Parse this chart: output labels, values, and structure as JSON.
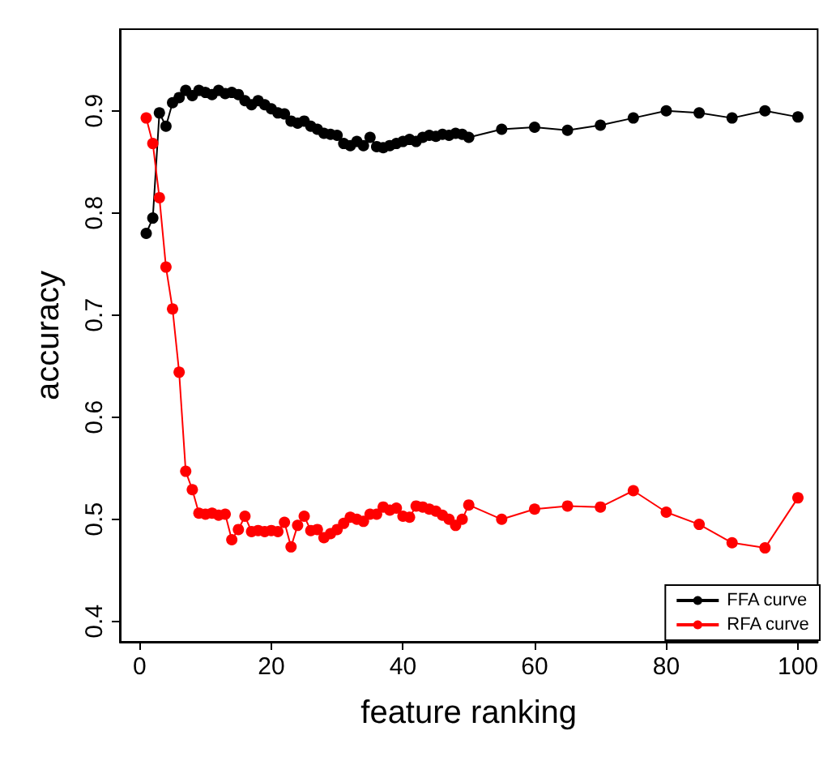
{
  "chart_data": {
    "type": "line",
    "xlabel": "feature ranking",
    "ylabel": "accuracy",
    "x": [
      1,
      2,
      3,
      4,
      5,
      6,
      7,
      8,
      9,
      10,
      11,
      12,
      13,
      14,
      15,
      16,
      17,
      18,
      19,
      20,
      21,
      22,
      23,
      24,
      25,
      26,
      27,
      28,
      29,
      30,
      31,
      32,
      33,
      34,
      35,
      36,
      37,
      38,
      39,
      40,
      41,
      42,
      43,
      44,
      45,
      46,
      47,
      48,
      49,
      50,
      55,
      60,
      65,
      70,
      75,
      80,
      85,
      90,
      95,
      100
    ],
    "series": [
      {
        "name": "FFA curve",
        "color": "#000000",
        "values": [
          0.78,
          0.795,
          0.898,
          0.885,
          0.908,
          0.913,
          0.92,
          0.915,
          0.92,
          0.918,
          0.916,
          0.92,
          0.917,
          0.918,
          0.916,
          0.91,
          0.906,
          0.91,
          0.906,
          0.902,
          0.898,
          0.897,
          0.89,
          0.888,
          0.89,
          0.885,
          0.882,
          0.878,
          0.877,
          0.876,
          0.868,
          0.866,
          0.87,
          0.866,
          0.874,
          0.865,
          0.864,
          0.866,
          0.868,
          0.87,
          0.872,
          0.87,
          0.874,
          0.876,
          0.875,
          0.877,
          0.876,
          0.878,
          0.877,
          0.874,
          0.882,
          0.884,
          0.881,
          0.886,
          0.893,
          0.9,
          0.898,
          0.893,
          0.9,
          0.894
        ]
      },
      {
        "name": "RFA curve",
        "color": "#ff0000",
        "values": [
          0.893,
          0.868,
          0.815,
          0.747,
          0.706,
          0.644,
          0.547,
          0.529,
          0.506,
          0.505,
          0.506,
          0.504,
          0.505,
          0.48,
          0.49,
          0.503,
          0.488,
          0.489,
          0.488,
          0.489,
          0.488,
          0.497,
          0.473,
          0.494,
          0.503,
          0.489,
          0.49,
          0.482,
          0.486,
          0.49,
          0.496,
          0.502,
          0.5,
          0.498,
          0.505,
          0.505,
          0.512,
          0.509,
          0.511,
          0.503,
          0.502,
          0.513,
          0.512,
          0.51,
          0.508,
          0.504,
          0.5,
          0.494,
          0.5,
          0.514,
          0.5,
          0.51,
          0.513,
          0.512,
          0.528,
          0.507,
          0.495,
          0.477,
          0.472,
          0.521
        ]
      }
    ],
    "xlim": [
      -3,
      103
    ],
    "xticks": [
      0,
      20,
      40,
      60,
      80,
      100
    ],
    "ylim": [
      0.38,
      0.98
    ],
    "yticks": [
      0.4,
      0.5,
      0.6,
      0.7,
      0.8,
      0.9
    ],
    "grid": false,
    "legend": "bottom right",
    "marker": "circle",
    "line_style": "solid"
  }
}
